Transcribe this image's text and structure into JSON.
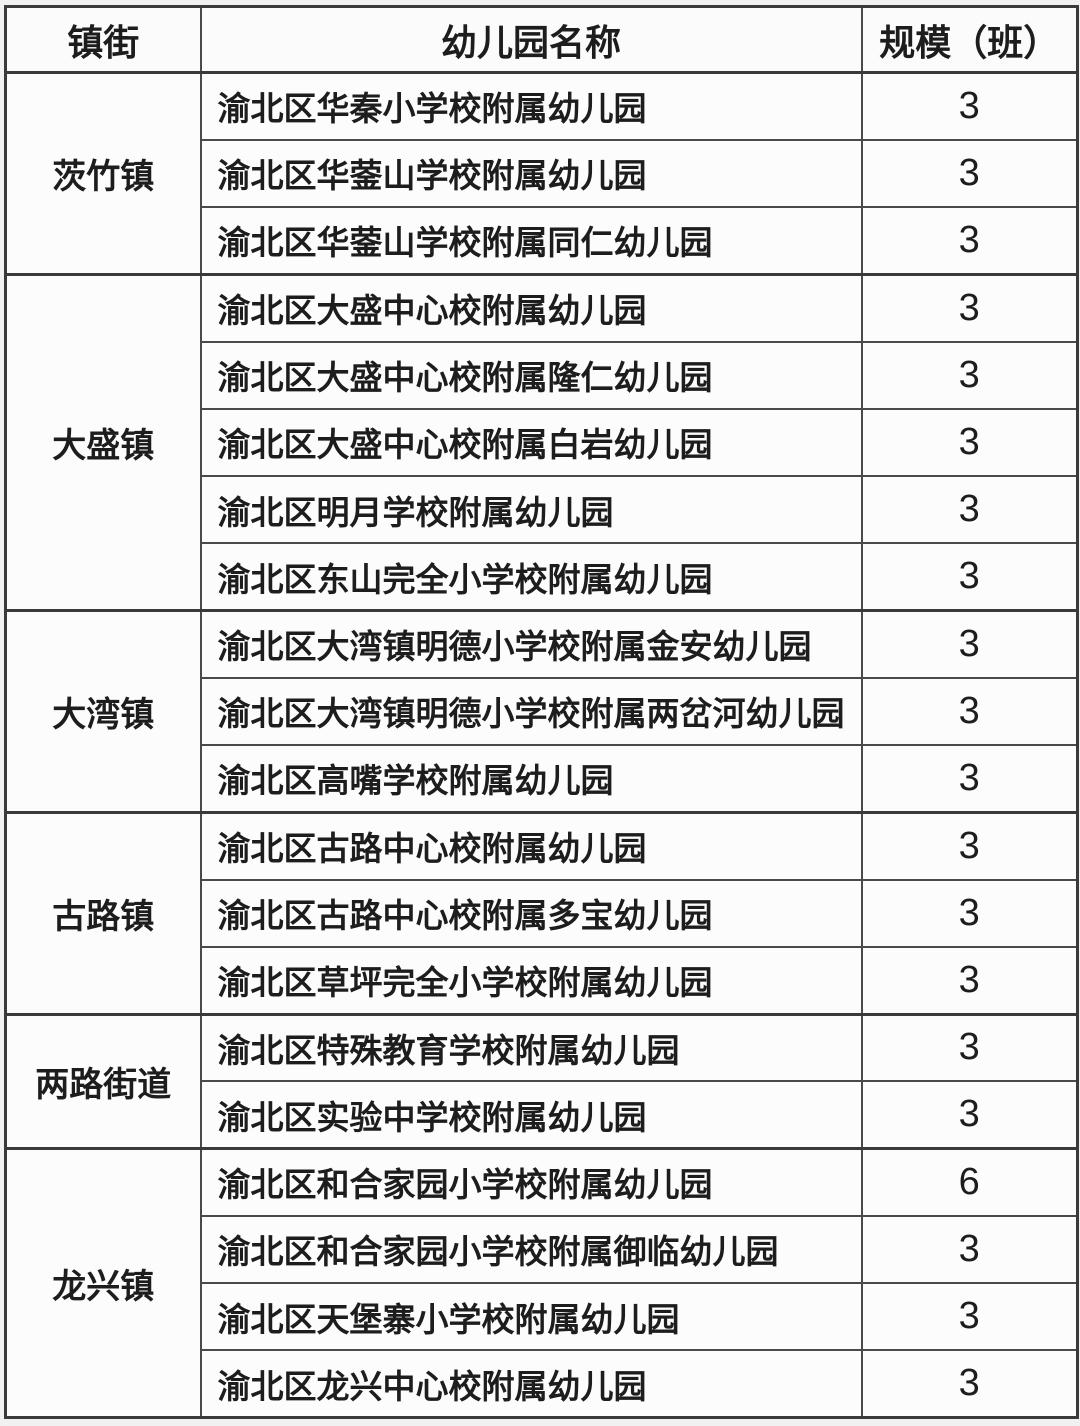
{
  "table": {
    "columns": [
      "镇街",
      "幼儿园名称",
      "规模（班）"
    ],
    "groups": [
      {
        "town": "茨竹镇",
        "rows": [
          {
            "name": "渝北区华秦小学校附属幼儿园",
            "classes": "3"
          },
          {
            "name": "渝北区华蓥山学校附属幼儿园",
            "classes": "3"
          },
          {
            "name": "渝北区华蓥山学校附属同仁幼儿园",
            "classes": "3"
          }
        ]
      },
      {
        "town": "大盛镇",
        "rows": [
          {
            "name": "渝北区大盛中心校附属幼儿园",
            "classes": "3"
          },
          {
            "name": "渝北区大盛中心校附属隆仁幼儿园",
            "classes": "3"
          },
          {
            "name": "渝北区大盛中心校附属白岩幼儿园",
            "classes": "3"
          },
          {
            "name": "渝北区明月学校附属幼儿园",
            "classes": "3"
          },
          {
            "name": "渝北区东山完全小学校附属幼儿园",
            "classes": "3"
          }
        ]
      },
      {
        "town": "大湾镇",
        "rows": [
          {
            "name": "渝北区大湾镇明德小学校附属金安幼儿园",
            "classes": "3"
          },
          {
            "name": "渝北区大湾镇明德小学校附属两岔河幼儿园",
            "classes": "3"
          },
          {
            "name": "渝北区高嘴学校附属幼儿园",
            "classes": "3"
          }
        ]
      },
      {
        "town": "古路镇",
        "rows": [
          {
            "name": "渝北区古路中心校附属幼儿园",
            "classes": "3"
          },
          {
            "name": "渝北区古路中心校附属多宝幼儿园",
            "classes": "3"
          },
          {
            "name": "渝北区草坪完全小学校附属幼儿园",
            "classes": "3"
          }
        ]
      },
      {
        "town": "两路街道",
        "rows": [
          {
            "name": "渝北区特殊教育学校附属幼儿园",
            "classes": "3"
          },
          {
            "name": "渝北区实验中学校附属幼儿园",
            "classes": "3"
          }
        ]
      },
      {
        "town": "龙兴镇",
        "rows": [
          {
            "name": "渝北区和合家园小学校附属幼儿园",
            "classes": "6"
          },
          {
            "name": "渝北区和合家园小学校附属御临幼儿园",
            "classes": "3"
          },
          {
            "name": "渝北区天堡寨小学校附属幼儿园",
            "classes": "3"
          },
          {
            "name": "渝北区龙兴中心校附属幼儿园",
            "classes": "3"
          }
        ]
      }
    ]
  },
  "colors": {
    "border": "#4a4a4a",
    "group_border": "#3a3a3a",
    "text": "#1d1d1d",
    "cell_background": "#fcfcfc",
    "page_background": "#f1f1f1"
  }
}
